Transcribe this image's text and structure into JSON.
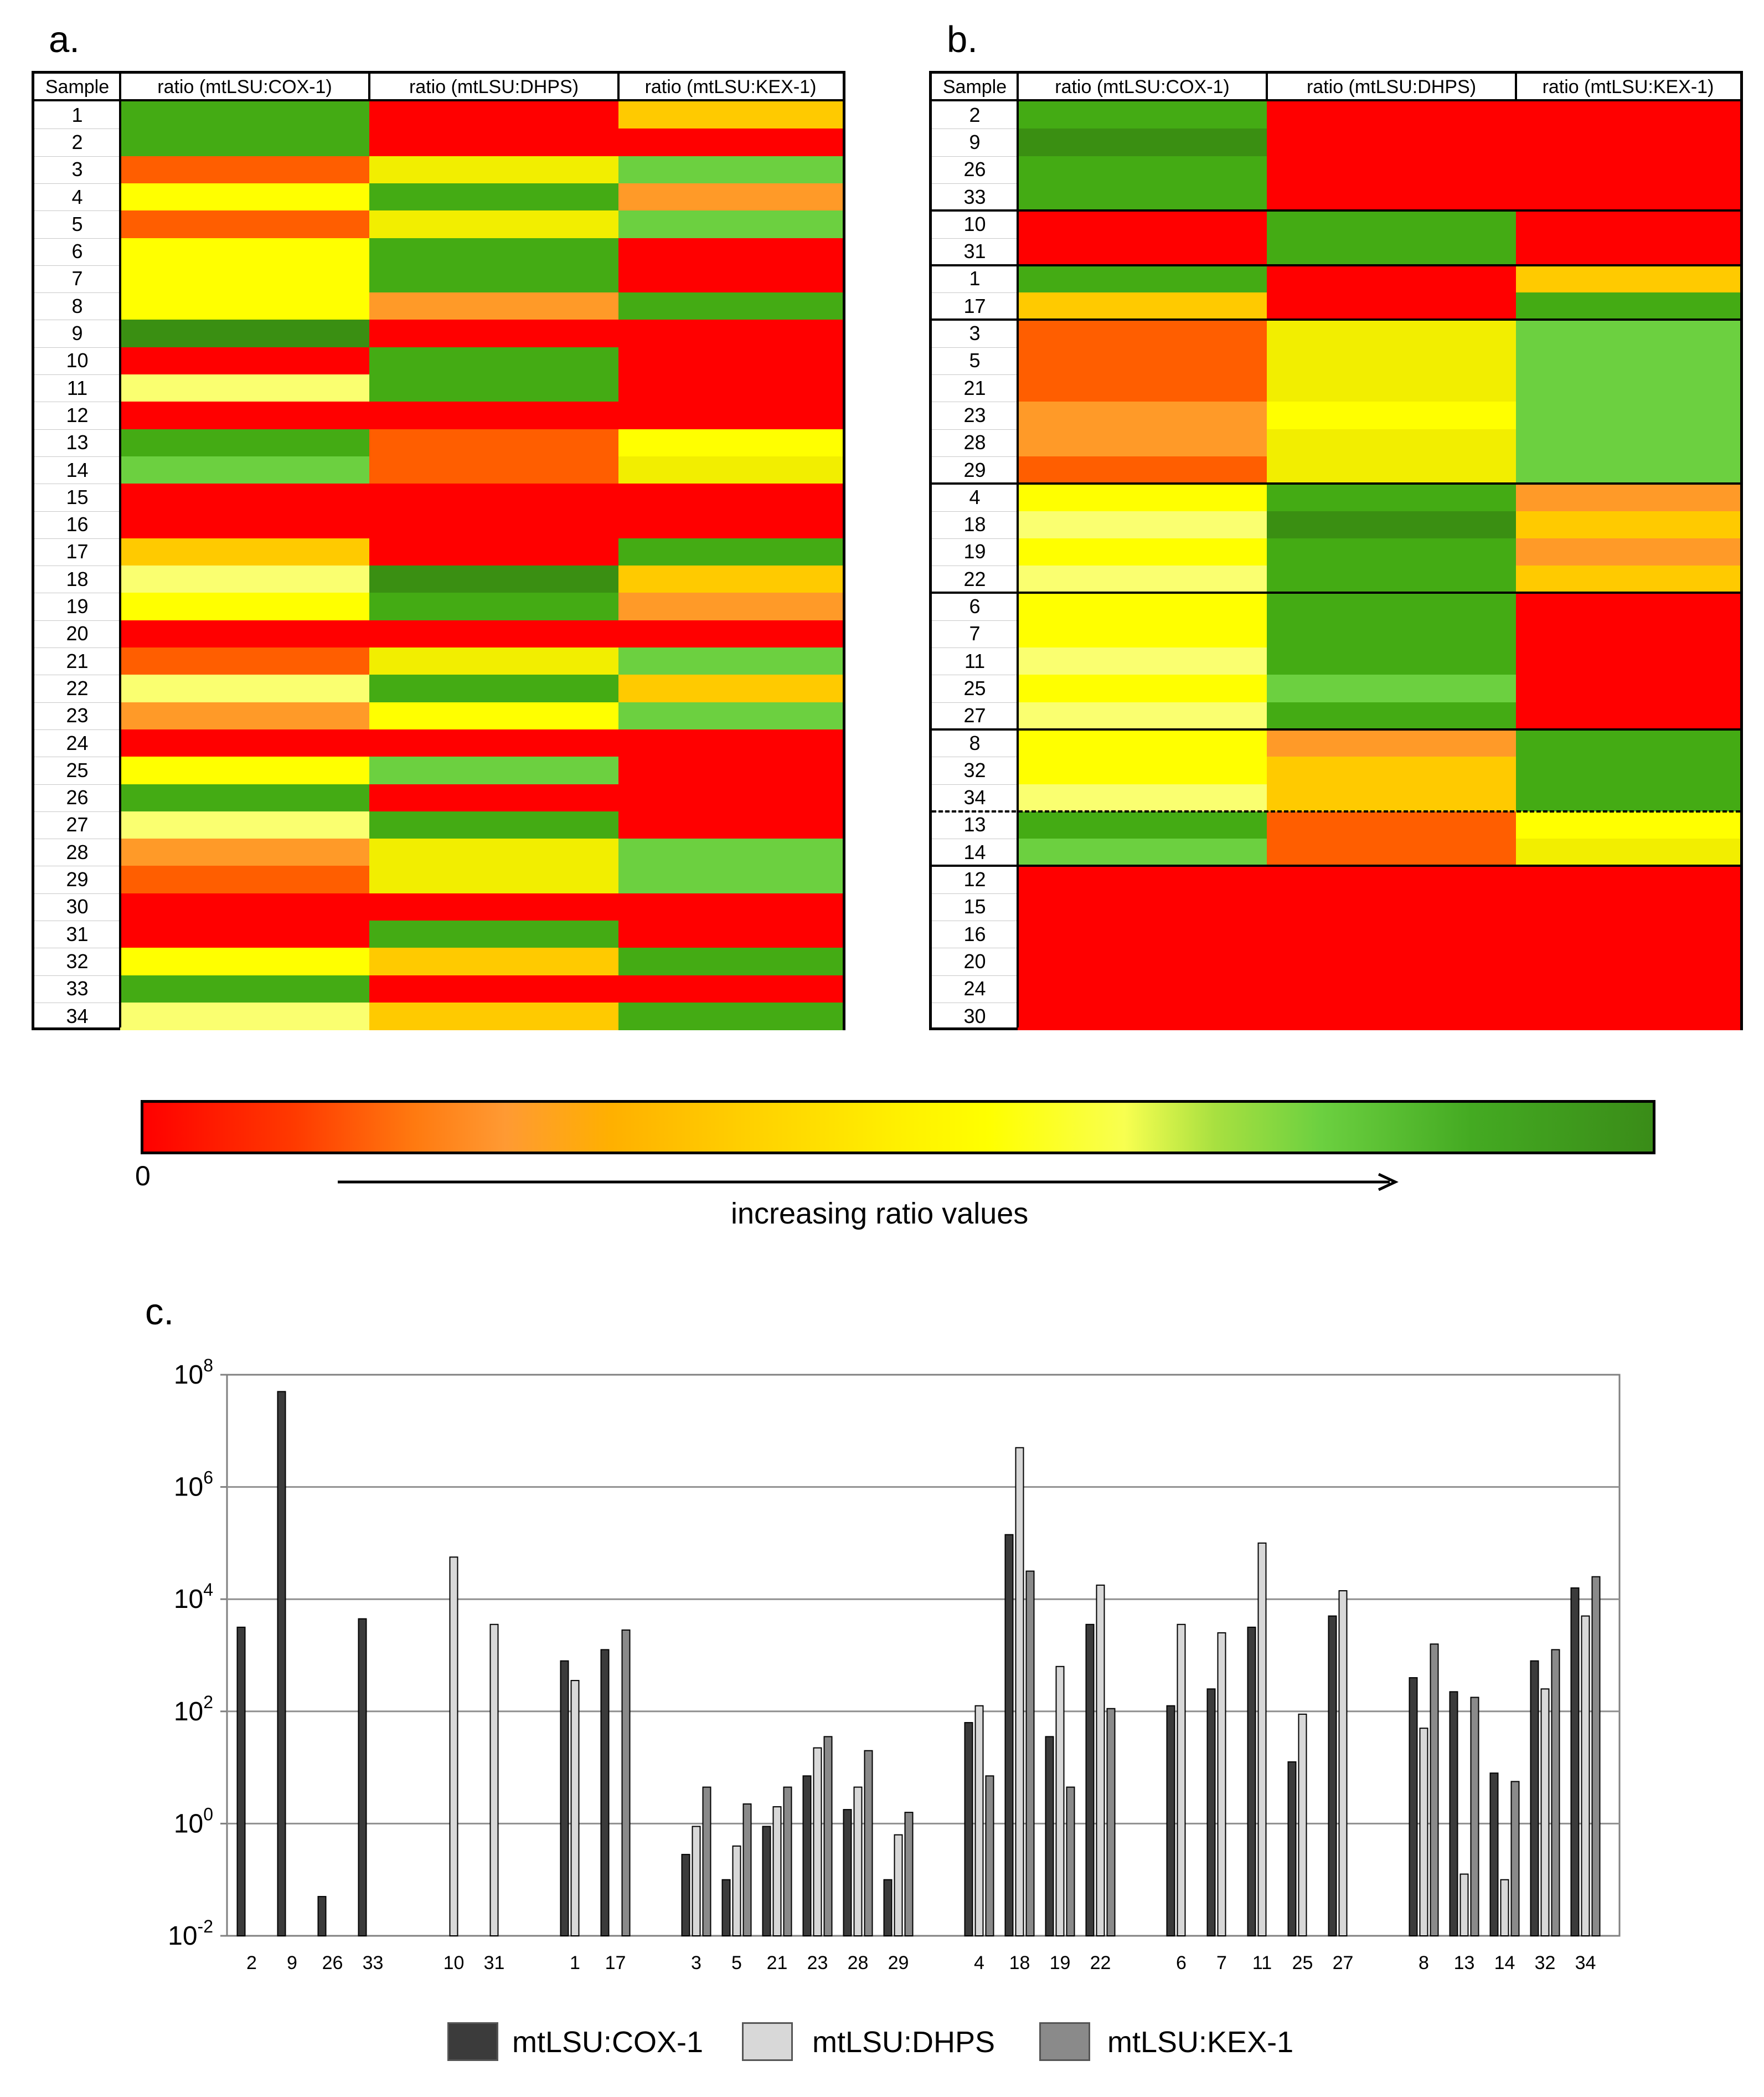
{
  "panels": {
    "a": "a.",
    "b": "b.",
    "c": "c."
  },
  "headers": [
    "Sample",
    "ratio (mtLSU:COX-1)",
    "ratio (mtLSU:DHPS)",
    "ratio (mtLSU:KEX-1)"
  ],
  "colors": {
    "R": "#ff0000",
    "RO": "#ff5e00",
    "O": "#ff9a28",
    "AM": "#ffca00",
    "Y": "#ffff00",
    "YE": "#f2ee00",
    "LY": "#faff70",
    "LG": "#6cd040",
    "G": "#44ab14",
    "DG": "#3a8f12"
  },
  "heatmap_a": {
    "rows": [
      {
        "sample": "1",
        "cells": [
          "G",
          "R",
          "AM"
        ]
      },
      {
        "sample": "2",
        "cells": [
          "G",
          "R",
          "R"
        ]
      },
      {
        "sample": "3",
        "cells": [
          "RO",
          "YE",
          "LG"
        ]
      },
      {
        "sample": "4",
        "cells": [
          "Y",
          "G",
          "O"
        ]
      },
      {
        "sample": "5",
        "cells": [
          "RO",
          "YE",
          "LG"
        ]
      },
      {
        "sample": "6",
        "cells": [
          "Y",
          "G",
          "R"
        ]
      },
      {
        "sample": "7",
        "cells": [
          "Y",
          "G",
          "R"
        ]
      },
      {
        "sample": "8",
        "cells": [
          "Y",
          "O",
          "G"
        ]
      },
      {
        "sample": "9",
        "cells": [
          "DG",
          "R",
          "R"
        ]
      },
      {
        "sample": "10",
        "cells": [
          "R",
          "G",
          "R"
        ]
      },
      {
        "sample": "11",
        "cells": [
          "LY",
          "G",
          "R"
        ]
      },
      {
        "sample": "12",
        "cells": [
          "R",
          "R",
          "R"
        ]
      },
      {
        "sample": "13",
        "cells": [
          "G",
          "RO",
          "Y"
        ]
      },
      {
        "sample": "14",
        "cells": [
          "LG",
          "RO",
          "YE"
        ]
      },
      {
        "sample": "15",
        "cells": [
          "R",
          "R",
          "R"
        ]
      },
      {
        "sample": "16",
        "cells": [
          "R",
          "R",
          "R"
        ]
      },
      {
        "sample": "17",
        "cells": [
          "AM",
          "R",
          "G"
        ]
      },
      {
        "sample": "18",
        "cells": [
          "LY",
          "DG",
          "AM"
        ]
      },
      {
        "sample": "19",
        "cells": [
          "Y",
          "G",
          "O"
        ]
      },
      {
        "sample": "20",
        "cells": [
          "R",
          "R",
          "R"
        ]
      },
      {
        "sample": "21",
        "cells": [
          "RO",
          "YE",
          "LG"
        ]
      },
      {
        "sample": "22",
        "cells": [
          "LY",
          "G",
          "AM"
        ]
      },
      {
        "sample": "23",
        "cells": [
          "O",
          "Y",
          "LG"
        ]
      },
      {
        "sample": "24",
        "cells": [
          "R",
          "R",
          "R"
        ]
      },
      {
        "sample": "25",
        "cells": [
          "Y",
          "LG",
          "R"
        ]
      },
      {
        "sample": "26",
        "cells": [
          "G",
          "R",
          "R"
        ]
      },
      {
        "sample": "27",
        "cells": [
          "LY",
          "G",
          "R"
        ]
      },
      {
        "sample": "28",
        "cells": [
          "O",
          "YE",
          "LG"
        ]
      },
      {
        "sample": "29",
        "cells": [
          "RO",
          "YE",
          "LG"
        ]
      },
      {
        "sample": "30",
        "cells": [
          "R",
          "R",
          "R"
        ]
      },
      {
        "sample": "31",
        "cells": [
          "R",
          "G",
          "R"
        ]
      },
      {
        "sample": "32",
        "cells": [
          "Y",
          "AM",
          "G"
        ]
      },
      {
        "sample": "33",
        "cells": [
          "G",
          "R",
          "R"
        ]
      },
      {
        "sample": "34",
        "cells": [
          "LY",
          "AM",
          "G"
        ]
      }
    ]
  },
  "heatmap_b": {
    "rows": [
      {
        "sample": "2",
        "cells": [
          "G",
          "R",
          "R"
        ]
      },
      {
        "sample": "9",
        "cells": [
          "DG",
          "R",
          "R"
        ]
      },
      {
        "sample": "26",
        "cells": [
          "G",
          "R",
          "R"
        ]
      },
      {
        "sample": "33",
        "cells": [
          "G",
          "R",
          "R"
        ]
      },
      {
        "sample": "10",
        "cells": [
          "R",
          "G",
          "R"
        ]
      },
      {
        "sample": "31",
        "cells": [
          "R",
          "G",
          "R"
        ]
      },
      {
        "sample": "1",
        "cells": [
          "G",
          "R",
          "AM"
        ]
      },
      {
        "sample": "17",
        "cells": [
          "AM",
          "R",
          "G"
        ]
      },
      {
        "sample": "3",
        "cells": [
          "RO",
          "YE",
          "LG"
        ]
      },
      {
        "sample": "5",
        "cells": [
          "RO",
          "YE",
          "LG"
        ]
      },
      {
        "sample": "21",
        "cells": [
          "RO",
          "YE",
          "LG"
        ]
      },
      {
        "sample": "23",
        "cells": [
          "O",
          "Y",
          "LG"
        ]
      },
      {
        "sample": "28",
        "cells": [
          "O",
          "YE",
          "LG"
        ]
      },
      {
        "sample": "29",
        "cells": [
          "RO",
          "YE",
          "LG"
        ]
      },
      {
        "sample": "4",
        "cells": [
          "Y",
          "G",
          "O"
        ]
      },
      {
        "sample": "18",
        "cells": [
          "LY",
          "DG",
          "AM"
        ]
      },
      {
        "sample": "19",
        "cells": [
          "Y",
          "G",
          "O"
        ]
      },
      {
        "sample": "22",
        "cells": [
          "LY",
          "G",
          "AM"
        ]
      },
      {
        "sample": "6",
        "cells": [
          "Y",
          "G",
          "R"
        ]
      },
      {
        "sample": "7",
        "cells": [
          "Y",
          "G",
          "R"
        ]
      },
      {
        "sample": "11",
        "cells": [
          "LY",
          "G",
          "R"
        ]
      },
      {
        "sample": "25",
        "cells": [
          "Y",
          "LG",
          "R"
        ]
      },
      {
        "sample": "27",
        "cells": [
          "LY",
          "G",
          "R"
        ]
      },
      {
        "sample": "8",
        "cells": [
          "Y",
          "O",
          "G"
        ]
      },
      {
        "sample": "32",
        "cells": [
          "Y",
          "AM",
          "G"
        ]
      },
      {
        "sample": "34",
        "cells": [
          "LY",
          "AM",
          "G"
        ]
      },
      {
        "sample": "13",
        "cells": [
          "G",
          "RO",
          "Y"
        ]
      },
      {
        "sample": "14",
        "cells": [
          "LG",
          "RO",
          "YE"
        ]
      },
      {
        "sample": "12",
        "cells": [
          "R",
          "R",
          "R"
        ]
      },
      {
        "sample": "15",
        "cells": [
          "R",
          "R",
          "R"
        ]
      },
      {
        "sample": "16",
        "cells": [
          "R",
          "R",
          "R"
        ]
      },
      {
        "sample": "20",
        "cells": [
          "R",
          "R",
          "R"
        ]
      },
      {
        "sample": "24",
        "cells": [
          "R",
          "R",
          "R"
        ]
      },
      {
        "sample": "30",
        "cells": [
          "R",
          "R",
          "R"
        ]
      }
    ],
    "solid_breaks_after_row": [
      4,
      6,
      8,
      14,
      18,
      23,
      28
    ],
    "dashed_breaks_after_row": [
      26
    ]
  },
  "scale": {
    "zero_label": "0",
    "caption": "increasing ratio values"
  },
  "chart_data": {
    "type": "bar",
    "y_scale": "log10",
    "ylim_exp": [
      -2,
      8
    ],
    "y_ticks": [
      {
        "base": "10",
        "exp": "-2"
      },
      {
        "base": "10",
        "exp": "0"
      },
      {
        "base": "10",
        "exp": "2"
      },
      {
        "base": "10",
        "exp": "4"
      },
      {
        "base": "10",
        "exp": "6"
      },
      {
        "base": "10",
        "exp": "8"
      }
    ],
    "series": [
      {
        "name": "mtLSU:COX-1",
        "color": "#3b3b3b"
      },
      {
        "name": "mtLSU:DHPS",
        "color": "#d8d8d8"
      },
      {
        "name": "mtLSU:KEX-1",
        "color": "#8a8a8a"
      }
    ],
    "groups": [
      {
        "categories": [
          {
            "label": "2",
            "values": [
              3.5,
              null,
              null
            ]
          },
          {
            "label": "9",
            "values": [
              7.7,
              null,
              null
            ]
          },
          {
            "label": "26",
            "values": [
              -1.3,
              null,
              null
            ]
          },
          {
            "label": "33",
            "values": [
              3.65,
              null,
              null
            ]
          }
        ]
      },
      {
        "categories": [
          {
            "label": "10",
            "values": [
              null,
              4.75,
              null
            ]
          },
          {
            "label": "31",
            "values": [
              null,
              3.55,
              null
            ]
          }
        ]
      },
      {
        "categories": [
          {
            "label": "1",
            "values": [
              2.9,
              2.55,
              null
            ]
          },
          {
            "label": "17",
            "values": [
              3.1,
              null,
              3.45
            ]
          }
        ]
      },
      {
        "categories": [
          {
            "label": "3",
            "values": [
              -0.55,
              -0.05,
              0.65
            ]
          },
          {
            "label": "5",
            "values": [
              -1.0,
              -0.4,
              0.35
            ]
          },
          {
            "label": "21",
            "values": [
              -0.05,
              0.3,
              0.65
            ]
          },
          {
            "label": "23",
            "values": [
              0.85,
              1.35,
              1.55
            ]
          },
          {
            "label": "28",
            "values": [
              0.25,
              0.65,
              1.3
            ]
          },
          {
            "label": "29",
            "values": [
              -1.0,
              -0.2,
              0.2
            ]
          }
        ]
      },
      {
        "categories": [
          {
            "label": "4",
            "values": [
              1.8,
              2.1,
              0.85
            ]
          },
          {
            "label": "18",
            "values": [
              5.15,
              6.7,
              4.5
            ]
          },
          {
            "label": "19",
            "values": [
              1.55,
              2.8,
              0.65
            ]
          },
          {
            "label": "22",
            "values": [
              3.55,
              4.25,
              2.05
            ]
          }
        ]
      },
      {
        "categories": [
          {
            "label": "6",
            "values": [
              2.1,
              3.55,
              null
            ]
          },
          {
            "label": "7",
            "values": [
              2.4,
              3.4,
              null
            ]
          },
          {
            "label": "11",
            "values": [
              3.5,
              5.0,
              null
            ]
          },
          {
            "label": "25",
            "values": [
              1.1,
              1.95,
              null
            ]
          },
          {
            "label": "27",
            "values": [
              3.7,
              4.15,
              null
            ]
          }
        ]
      },
      {
        "categories": [
          {
            "label": "8",
            "values": [
              2.6,
              1.7,
              3.2
            ]
          },
          {
            "label": "13",
            "values": [
              2.35,
              -0.9,
              2.25
            ]
          },
          {
            "label": "14",
            "values": [
              0.9,
              -1.0,
              0.75
            ]
          },
          {
            "label": "32",
            "values": [
              2.9,
              2.4,
              3.1
            ]
          },
          {
            "label": "34",
            "values": [
              4.2,
              3.7,
              4.4
            ]
          }
        ]
      }
    ]
  }
}
